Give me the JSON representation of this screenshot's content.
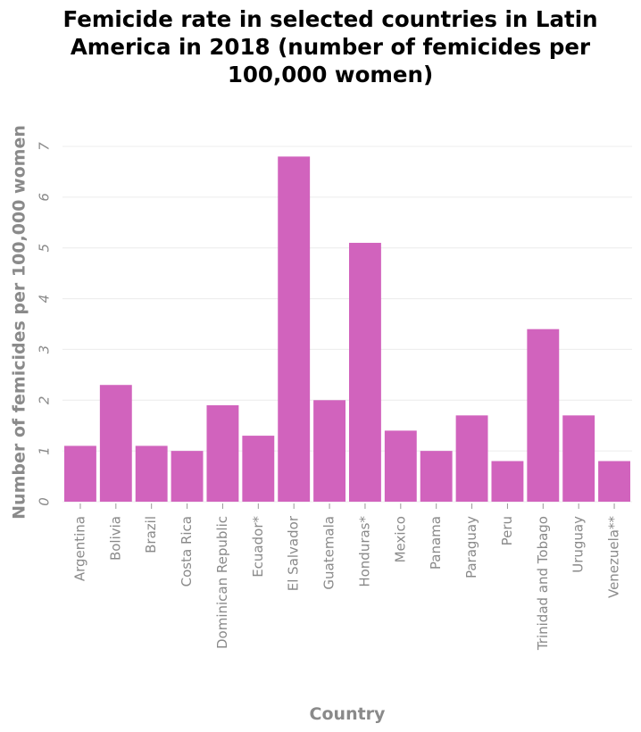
{
  "chart_data": {
    "type": "bar",
    "title": "Femicide rate in selected countries in Latin America in 2018 (number of femicides per 100,000 women)",
    "xlabel": "Country",
    "ylabel": "Number of femicides per 100,000 women",
    "ylim": [
      0,
      7
    ],
    "yticks": [
      "0",
      "1",
      "2",
      "3",
      "4",
      "5",
      "6",
      "7"
    ],
    "grid": true,
    "bar_color": "#d163bd",
    "categories": [
      "Argentina",
      "Bolivia",
      "Brazil",
      "Costa Rica",
      "Dominican Republic",
      "Ecuador*",
      "El Salvador",
      "Guatemala",
      "Honduras*",
      "Mexico",
      "Panama",
      "Paraguay",
      "Peru",
      "Trinidad and Tobago",
      "Uruguay",
      "Venezuela**"
    ],
    "values": [
      1.1,
      2.3,
      1.1,
      1.0,
      1.9,
      1.3,
      6.8,
      2.0,
      5.1,
      1.4,
      1.0,
      1.7,
      0.8,
      3.4,
      1.7,
      0.8
    ]
  }
}
